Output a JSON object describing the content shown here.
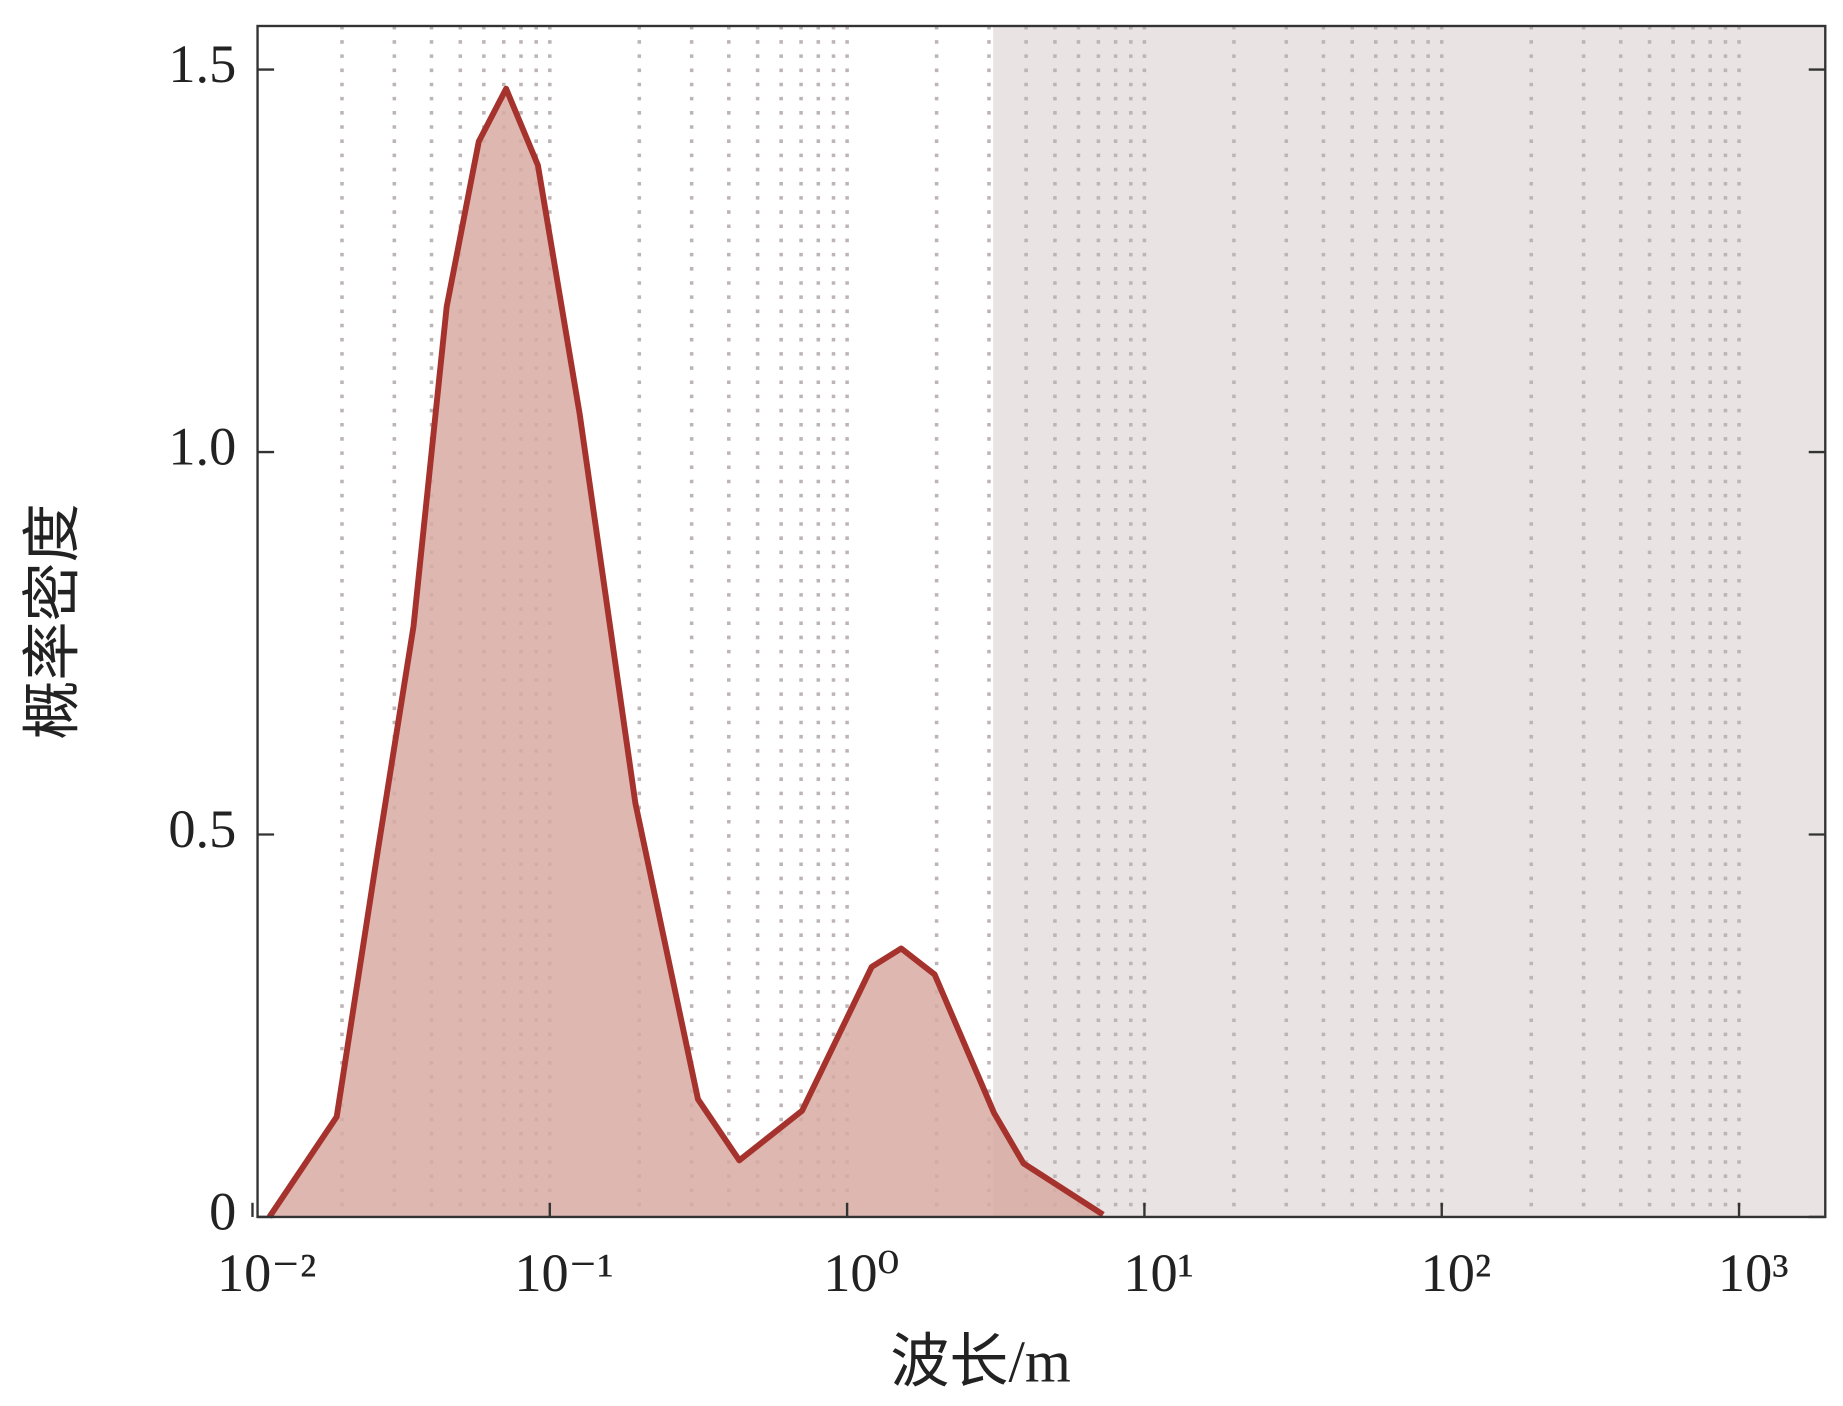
{
  "chart_data": {
    "type": "area",
    "x_label": "波长/m",
    "y_label": "概率密度",
    "x": [
      0.0114,
      0.0192,
      0.0264,
      0.0348,
      0.045,
      0.0577,
      0.0713,
      0.0912,
      0.126,
      0.194,
      0.315,
      0.434,
      0.706,
      1.21,
      1.52,
      1.97,
      3.12,
      3.92,
      7.26
    ],
    "series": [
      {
        "color": "#a5322c",
        "fill": "#d7aaa2",
        "values": [
          0,
          0.131,
          0.479,
          0.772,
          1.19,
          1.406,
          1.475,
          1.375,
          1.05,
          0.541,
          0.154,
          0.074,
          0.139,
          0.327,
          0.351,
          0.317,
          0.136,
          0.07,
          0.003
        ]
      }
    ],
    "xscale": "log",
    "xlim": [
      0.0104,
      1950
    ],
    "ylim": [
      0,
      1.557
    ],
    "xticks": [
      {
        "value": 0.01,
        "label": "10⁻²"
      },
      {
        "value": 0.1,
        "label": "10⁻¹"
      },
      {
        "value": 1,
        "label": "10⁰"
      },
      {
        "value": 10,
        "label": "10¹"
      },
      {
        "value": 100,
        "label": "10²"
      },
      {
        "value": 1000,
        "label": "10³"
      }
    ],
    "xminor": [
      0.02,
      0.03,
      0.04,
      0.05,
      0.06,
      0.07,
      0.08,
      0.09,
      0.2,
      0.3,
      0.4,
      0.5,
      0.6,
      0.7,
      0.8,
      0.9,
      2,
      3,
      4,
      5,
      6,
      7,
      8,
      9,
      20,
      30,
      40,
      50,
      60,
      70,
      80,
      90,
      200,
      300,
      400,
      500,
      600,
      700,
      800,
      900
    ],
    "yticks": [
      0,
      0.5,
      {
        "value": 1,
        "label": "1.0"
      },
      1.5
    ],
    "grid": true,
    "shaded_region": {
      "range": [
        3.1,
        1950
      ],
      "color": "#e9e3e3"
    }
  }
}
